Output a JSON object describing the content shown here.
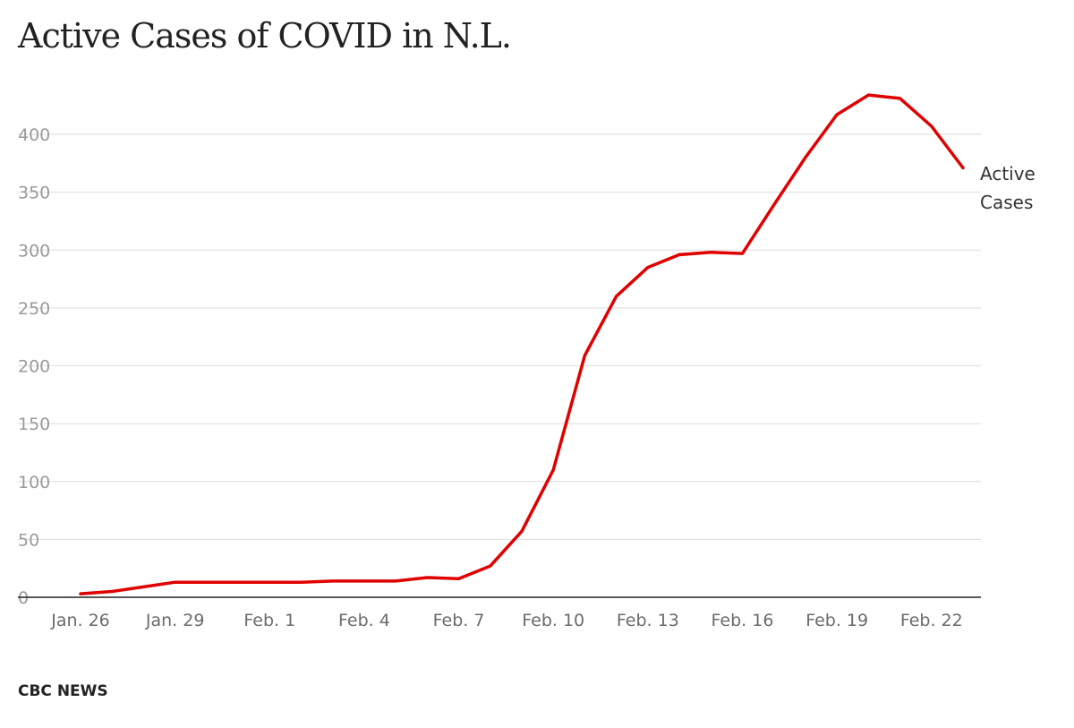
{
  "chart_data": {
    "type": "line",
    "title": "Active Cases of COVID in N.L.",
    "xlabel": "",
    "ylabel": "",
    "ylim": [
      0,
      450
    ],
    "y_ticks": [
      0,
      50,
      100,
      150,
      200,
      250,
      300,
      350,
      400
    ],
    "x_ticks": [
      "Jan. 26",
      "Jan. 29",
      "Feb. 1",
      "Feb. 4",
      "Feb. 7",
      "Feb. 10",
      "Feb. 13",
      "Feb. 16",
      "Feb. 19",
      "Feb. 22"
    ],
    "grid": true,
    "line_color": "#e00000",
    "x": [
      "Jan. 26",
      "Jan. 27",
      "Jan. 28",
      "Jan. 29",
      "Jan. 30",
      "Jan. 31",
      "Feb. 1",
      "Feb. 2",
      "Feb. 3",
      "Feb. 4",
      "Feb. 5",
      "Feb. 6",
      "Feb. 7",
      "Feb. 8",
      "Feb. 9",
      "Feb. 10",
      "Feb. 11",
      "Feb. 12",
      "Feb. 13",
      "Feb. 14",
      "Feb. 15",
      "Feb. 16",
      "Feb. 17",
      "Feb. 18",
      "Feb. 19",
      "Feb. 20",
      "Feb. 21",
      "Feb. 22",
      "Feb. 23"
    ],
    "series": [
      {
        "name": "Active Cases",
        "values": [
          3,
          5,
          9,
          13,
          13,
          13,
          13,
          13,
          14,
          14,
          14,
          17,
          16,
          27,
          57,
          110,
          209,
          260,
          285,
          296,
          298,
          297,
          339,
          380,
          417,
          434,
          431,
          407,
          371
        ]
      }
    ]
  },
  "series_label_lines": [
    "Active",
    "Cases"
  ],
  "source": "CBC NEWS"
}
